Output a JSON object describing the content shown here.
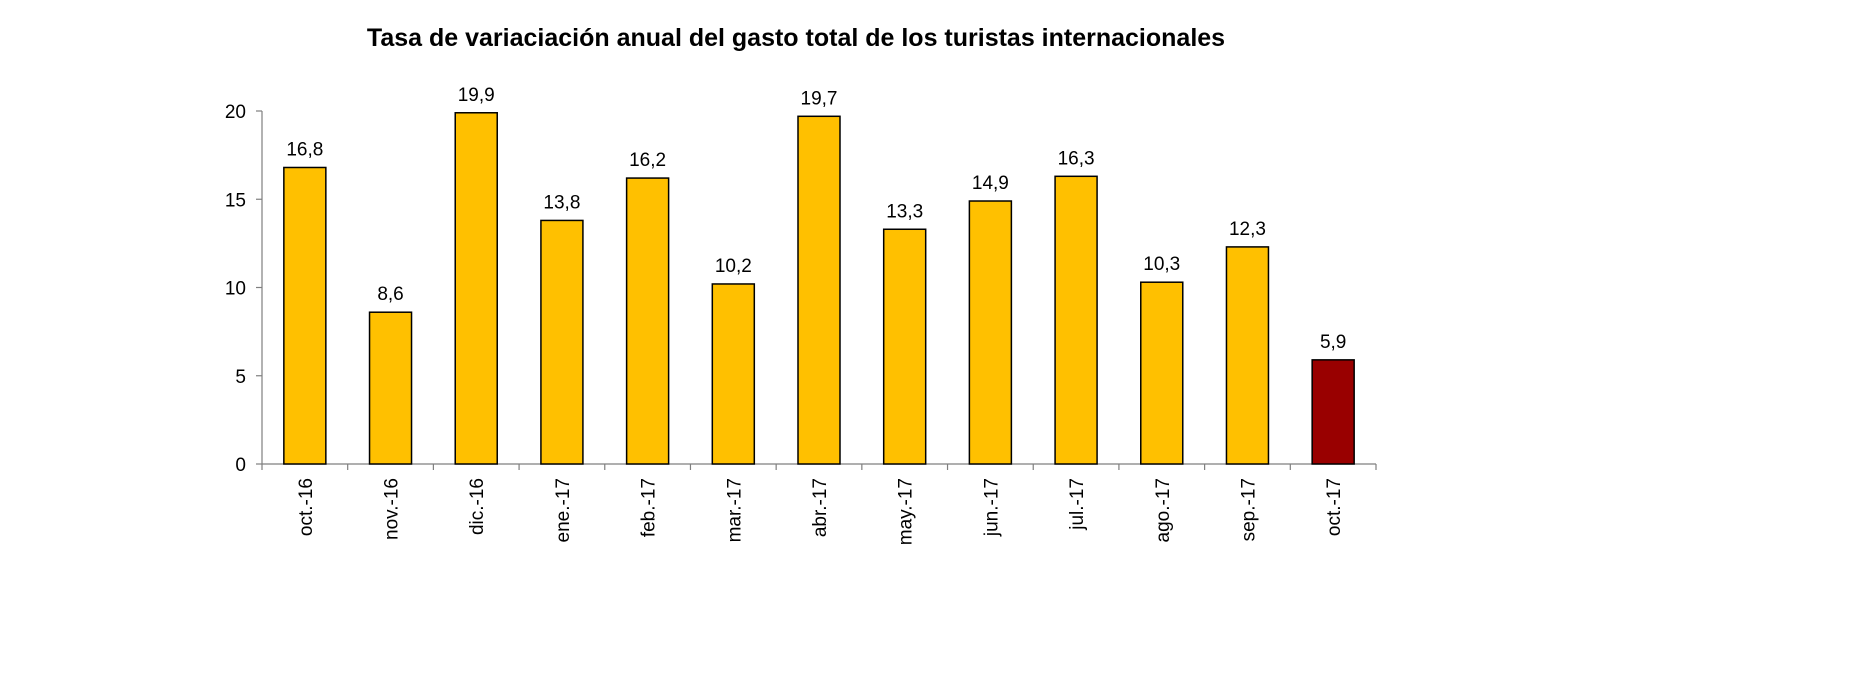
{
  "chart_data": {
    "type": "bar",
    "title": "Tasa de variaciación anual del gasto total de los turistas internacionales",
    "categories": [
      "oct.-16",
      "nov.-16",
      "dic.-16",
      "ene.-17",
      "feb.-17",
      "mar.-17",
      "abr.-17",
      "may.-17",
      "jun.-17",
      "jul.-17",
      "ago.-17",
      "sep.-17",
      "oct.-17"
    ],
    "values": [
      16.8,
      8.6,
      19.9,
      13.8,
      16.2,
      10.2,
      19.7,
      13.3,
      14.9,
      16.3,
      10.3,
      12.3,
      5.9
    ],
    "value_labels": [
      "16,8",
      "8,6",
      "19,9",
      "13,8",
      "16,2",
      "10,2",
      "19,7",
      "13,3",
      "14,9",
      "16,3",
      "10,3",
      "12,3",
      "5,9"
    ],
    "y_ticks": [
      0,
      5,
      10,
      15,
      20
    ],
    "ylim": [
      0,
      20
    ],
    "xlabel": "",
    "ylabel": "",
    "grid": false,
    "legend": "none",
    "colors": {
      "bar": "#FFC000",
      "highlight_bar": "#990000",
      "bar_stroke": "#000000",
      "axis": "#7f7f7f"
    },
    "highlight_index": 12
  }
}
